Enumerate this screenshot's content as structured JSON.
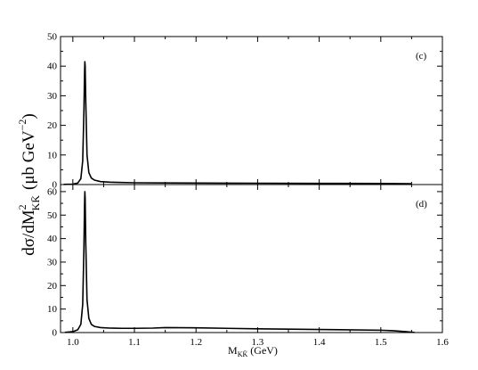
{
  "chart_data": [
    {
      "type": "line",
      "panel_label": "(c)",
      "xlim": [
        0.98,
        1.6
      ],
      "ylim": [
        0,
        50
      ],
      "yticks": [
        0,
        10,
        20,
        30,
        40,
        50
      ],
      "ytick_labels": [
        "0",
        "10",
        "20",
        "30",
        "40",
        "50"
      ],
      "grid": false,
      "series": [
        {
          "x": [
            0.985,
            1.0,
            1.008,
            1.013,
            1.016,
            1.018,
            1.019,
            1.0195,
            1.02,
            1.021,
            1.023,
            1.026,
            1.03,
            1.035,
            1.045,
            1.06,
            1.08,
            1.1,
            1.15,
            1.2,
            1.3,
            1.4,
            1.5,
            1.55
          ],
          "y": [
            0.05,
            0.15,
            0.5,
            2,
            8,
            25,
            38,
            41.5,
            40,
            28,
            10,
            4,
            2.2,
            1.5,
            1.0,
            0.8,
            0.7,
            0.6,
            0.55,
            0.5,
            0.45,
            0.4,
            0.35,
            0.3
          ]
        }
      ]
    },
    {
      "type": "line",
      "panel_label": "(d)",
      "xlim": [
        0.98,
        1.6
      ],
      "ylim": [
        0,
        63
      ],
      "yticks": [
        0,
        10,
        20,
        30,
        40,
        50,
        60
      ],
      "ytick_labels": [
        "0",
        "10",
        "20",
        "30",
        "40",
        "50",
        "60"
      ],
      "xticks": [
        1.0,
        1.1,
        1.2,
        1.3,
        1.4,
        1.5,
        1.6
      ],
      "xtick_labels": [
        "1.0",
        "1.1",
        "1.2",
        "1.3",
        "1.4",
        "1.5",
        "1.6"
      ],
      "grid": false,
      "series": [
        {
          "x": [
            0.987,
            1.0,
            1.008,
            1.013,
            1.016,
            1.018,
            1.019,
            1.0195,
            1.02,
            1.021,
            1.023,
            1.026,
            1.03,
            1.035,
            1.045,
            1.06,
            1.08,
            1.1,
            1.13,
            1.15,
            1.2,
            1.3,
            1.4,
            1.5,
            1.52,
            1.54,
            1.555
          ],
          "y": [
            0.1,
            0.4,
            1.2,
            3.5,
            12,
            36,
            55,
            60,
            57,
            38,
            14,
            6,
            3.5,
            2.6,
            2.1,
            1.9,
            1.8,
            1.8,
            1.9,
            2.1,
            2.0,
            1.6,
            1.3,
            1.0,
            0.8,
            0.4,
            0.05
          ]
        }
      ]
    }
  ],
  "ylabel_main": "dσ/dM",
  "ylabel_sup": "2",
  "ylabel_sub": "KK̄",
  "ylabel_unit_open": "(μb GeV",
  "ylabel_unit_sup": "−2",
  "ylabel_unit_close": ")",
  "xlabel_main": "M",
  "xlabel_sub": "KK̄",
  "xlabel_unit": "(GeV)"
}
